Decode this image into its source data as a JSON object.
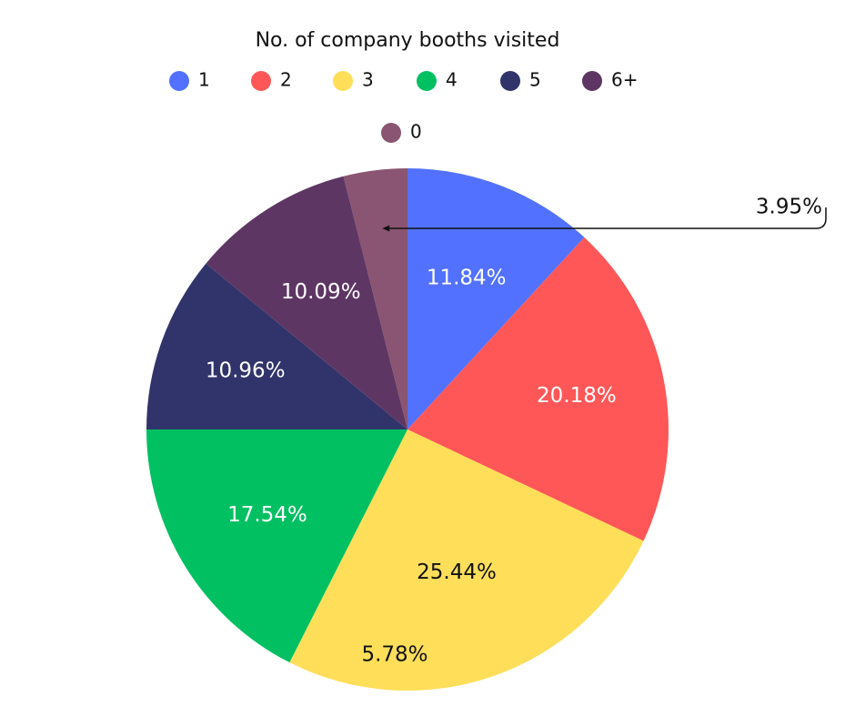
{
  "chart_data": {
    "type": "pie",
    "legend_title": "No. of company booths visited",
    "legend_position": "top",
    "slices": [
      {
        "category": "0",
        "label": "3.95%",
        "value": 3.95,
        "color": "#8A5572",
        "label_color": "#111111"
      },
      {
        "category": "1",
        "label": "11.84%",
        "value": 11.84,
        "color": "#5271FF",
        "label_color": "#FFFFFF"
      },
      {
        "category": "2",
        "label": "20.18%",
        "value": 20.18,
        "color": "#FF5757",
        "label_color": "#FFFFFF"
      },
      {
        "category": "3",
        "label": "25.44%",
        "value": 25.44,
        "color": "#FFDE59",
        "label_color": "#111111"
      },
      {
        "category": "4",
        "label": "17.54%",
        "value": 17.54,
        "color": "#00C062",
        "label_color": "#FFFFFF"
      },
      {
        "category": "5",
        "label": "10.96%",
        "value": 10.96,
        "color": "#30346A",
        "label_color": "#FFFFFF"
      },
      {
        "category": "6+",
        "label": "10.09%",
        "value": 10.09,
        "color": "#5E3664",
        "label_color": "#FFFFFF"
      }
    ],
    "legend_order": [
      "1",
      "2",
      "3",
      "4",
      "5",
      "6+",
      "0"
    ],
    "stray_label": "5.78%"
  }
}
